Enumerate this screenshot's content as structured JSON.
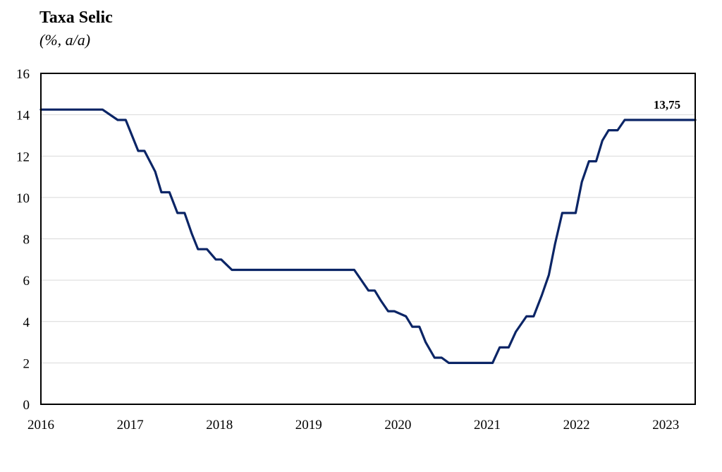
{
  "chart_data": {
    "type": "line",
    "title": "Taxa Selic",
    "subtitle": "(%, a/a)",
    "xlabel": "",
    "ylabel": "",
    "ylim": [
      0,
      16
    ],
    "xlim": [
      2016.0,
      2023.33
    ],
    "y_ticks": [
      "0",
      "2",
      "4",
      "6",
      "8",
      "10",
      "12",
      "14",
      "16"
    ],
    "x_ticks": [
      "2016",
      "2017",
      "2018",
      "2019",
      "2020",
      "2021",
      "2022",
      "2023"
    ],
    "grid": "horizontal",
    "legend": "none",
    "line_color": "#0B2566",
    "end_label": "13,75",
    "series": [
      {
        "x": [
          2016.0,
          2016.69,
          2016.86,
          2016.95,
          2017.09,
          2017.16,
          2017.28,
          2017.35,
          2017.44,
          2017.53,
          2017.61,
          2017.69,
          2017.76,
          2017.86,
          2017.96,
          2018.02,
          2018.14,
          2019.51,
          2019.59,
          2019.67,
          2019.74,
          2019.81,
          2019.89,
          2019.96,
          2020.09,
          2020.16,
          2020.24,
          2020.31,
          2020.41,
          2020.49,
          2020.57,
          2021.06,
          2021.14,
          2021.24,
          2021.32,
          2021.44,
          2021.52,
          2021.61,
          2021.69,
          2021.76,
          2021.84,
          2021.99,
          2022.06,
          2022.14,
          2022.22,
          2022.29,
          2022.36,
          2022.46,
          2022.54,
          2022.61,
          2023.33
        ],
        "y": [
          14.25,
          14.25,
          13.75,
          13.75,
          12.25,
          12.25,
          11.25,
          10.25,
          10.25,
          9.25,
          9.25,
          8.25,
          7.5,
          7.5,
          7.0,
          7.0,
          6.5,
          6.5,
          6.0,
          5.5,
          5.5,
          5.0,
          4.5,
          4.5,
          4.25,
          3.75,
          3.75,
          3.0,
          2.25,
          2.25,
          2.0,
          2.0,
          2.75,
          2.75,
          3.5,
          4.25,
          4.25,
          5.25,
          6.25,
          7.75,
          9.25,
          9.25,
          10.75,
          11.75,
          11.75,
          12.75,
          13.25,
          13.25,
          13.75,
          13.75,
          13.75
        ]
      }
    ]
  }
}
